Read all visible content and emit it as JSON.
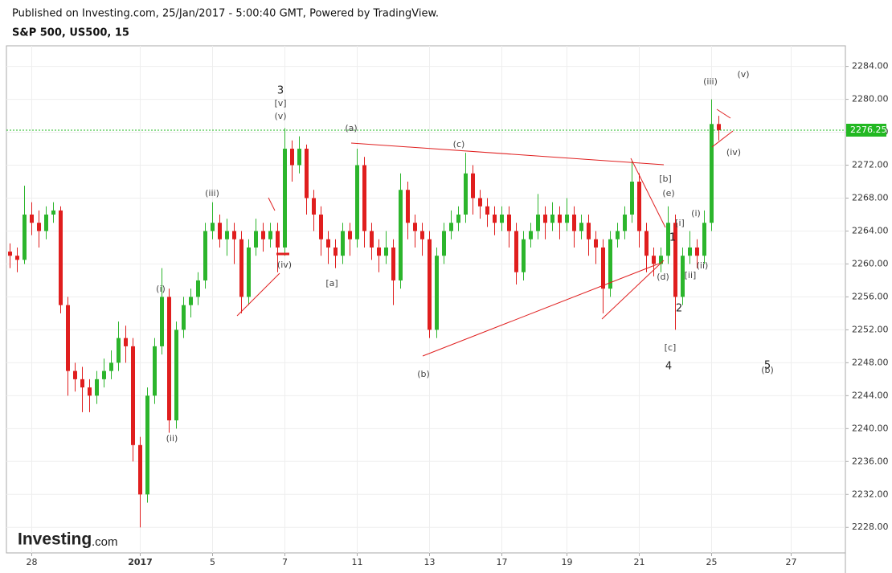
{
  "header": {
    "published": "Published on Investing.com, 25/Jan/2017 - 5:00:40 GMT, Powered by TradingView.",
    "logo": "Investing",
    "logo_suffix": ".com"
  },
  "chart_data": {
    "type": "candlestick",
    "title": "S&P 500, US500, 15",
    "categories": [
      null,
      null,
      null,
      "28",
      null,
      null,
      null,
      null,
      null,
      null,
      null,
      null,
      null,
      null,
      null,
      null,
      null,
      null,
      "2017",
      null,
      null,
      null,
      null,
      null,
      null,
      null,
      null,
      null,
      "5",
      null,
      null,
      null,
      null,
      null,
      null,
      null,
      null,
      null,
      "7",
      null,
      null,
      null,
      null,
      null,
      null,
      null,
      null,
      null,
      "11",
      null,
      null,
      null,
      null,
      null,
      null,
      null,
      null,
      null,
      "13",
      null,
      null,
      null,
      null,
      null,
      null,
      null,
      null,
      null,
      "17",
      null,
      null,
      null,
      null,
      null,
      null,
      null,
      null,
      "19",
      null,
      null,
      null,
      null,
      null,
      null,
      null,
      null,
      null,
      "21",
      null,
      null,
      null,
      null,
      null,
      null,
      null,
      null,
      null,
      "25",
      null,
      null,
      null,
      null,
      null,
      null,
      null,
      null,
      null,
      null,
      "27",
      null,
      null,
      null,
      null,
      null,
      null,
      null
    ],
    "open": [
      2261.5,
      2261,
      2260.5,
      2266,
      2265,
      2264,
      2266,
      2266.5,
      2255,
      2247,
      2246,
      2245,
      2244,
      2246,
      2247,
      2248,
      2251,
      2250,
      2238,
      2232,
      2244,
      2250,
      2256,
      2241,
      2252,
      2255,
      2256,
      2258,
      2264,
      2265,
      2263,
      2264,
      2263,
      2256,
      2262,
      2264,
      2263,
      2264,
      2262,
      2274,
      2272,
      2274,
      2268,
      2266,
      2263,
      2262,
      2261,
      2264,
      2263,
      2272,
      2264,
      2262,
      2261,
      2262,
      2258,
      2269,
      2265,
      2264,
      2263,
      2252,
      2261,
      2264,
      2265,
      2266,
      2271,
      2268,
      2267,
      2266,
      2265,
      2266,
      2264,
      2259,
      2263,
      2264,
      2266,
      2265,
      2266,
      2265,
      2266,
      2264,
      2265,
      2263,
      2262,
      2257,
      2263,
      2264,
      2266,
      2270,
      2264,
      2261,
      2260,
      2261,
      2265,
      2256,
      2261,
      2262,
      2261,
      2265,
      2277,
      null,
      null,
      null,
      null,
      null,
      null,
      null,
      null,
      null,
      null,
      null,
      null,
      null,
      null,
      null,
      null,
      null
    ],
    "high": [
      2262.5,
      2262,
      2269.5,
      2267.5,
      2266.5,
      2267,
      2267.5,
      2267,
      2256,
      2248,
      2247.5,
      2246,
      2247,
      2248.5,
      2249.5,
      2253,
      2252.5,
      2251,
      2239,
      2245,
      2251,
      2259.5,
      2257,
      2253,
      2256,
      2257,
      2259,
      2265,
      2267.5,
      2266,
      2265.5,
      2265,
      2264,
      2263,
      2265.5,
      2265,
      2265,
      2265,
      2276.5,
      2275,
      2275.5,
      2274.5,
      2269,
      2267,
      2264,
      2263,
      2265,
      2265,
      2274,
      2273,
      2265,
      2263,
      2264,
      2263,
      2271,
      2270,
      2266,
      2265,
      2264,
      2262,
      2265,
      2266.5,
      2267,
      2273.5,
      2272,
      2269,
      2268,
      2267,
      2267,
      2267,
      2265,
      2264,
      2265,
      2268.5,
      2267,
      2267.5,
      2267,
      2268,
      2267,
      2266,
      2266,
      2264,
      2263,
      2264,
      2265,
      2267,
      2272.5,
      2271,
      2265,
      2262,
      2262,
      2267,
      2266,
      2262,
      2264,
      2263,
      2266.5,
      2280,
      2278,
      null,
      null,
      null,
      null,
      null,
      null,
      null,
      null,
      null,
      null,
      null,
      null,
      null,
      null,
      null,
      null,
      null
    ],
    "low": [
      2259.5,
      2259,
      2260,
      2263.5,
      2262,
      2263,
      2265,
      2254,
      2244,
      2244.5,
      2242,
      2242,
      2243,
      2245,
      2246,
      2247,
      2248,
      2236,
      2228,
      2231,
      2243,
      2249,
      2239.5,
      2240,
      2251,
      2253.5,
      2255,
      2257,
      2263,
      2262,
      2261,
      2260,
      2254,
      2255,
      2261,
      2261.5,
      2262,
      2259,
      2261,
      2270,
      2271,
      2266,
      2264,
      2261,
      2260,
      2259.5,
      2260,
      2261,
      2262,
      2262,
      2260.5,
      2259,
      2260,
      2255,
      2257,
      2263,
      2262,
      2261,
      2251,
      2251,
      2260,
      2263,
      2264,
      2265,
      2266,
      2265.5,
      2264.5,
      2263.5,
      2264,
      2262,
      2257.5,
      2258,
      2262,
      2263,
      2263,
      2264,
      2263,
      2264,
      2262,
      2263,
      2261,
      2260,
      2254,
      2256,
      2262,
      2263,
      2265,
      2262,
      2259,
      2258.5,
      2259,
      2260,
      2252,
      2255,
      2260,
      2259.5,
      2260,
      2264,
      2275,
      null,
      null,
      null,
      null,
      null,
      null,
      null,
      null,
      null,
      null,
      null,
      null,
      null,
      null,
      null,
      null,
      null
    ],
    "close": [
      2261,
      2260.5,
      2266,
      2265,
      2264,
      2266,
      2266.5,
      2255,
      2247,
      2246,
      2245,
      2244,
      2246,
      2247,
      2248,
      2251,
      2250,
      2238,
      2232,
      2244,
      2250,
      2256,
      2241,
      2252,
      2255,
      2256,
      2258,
      2264,
      2265,
      2263,
      2264,
      2263,
      2256,
      2262,
      2264,
      2263,
      2264,
      2262,
      2274,
      2272,
      2274,
      2268,
      2266,
      2263,
      2262,
      2261,
      2264,
      2263,
      2272,
      2264,
      2262,
      2261,
      2262,
      2258,
      2269,
      2265,
      2264,
      2263,
      2252,
      2261,
      2264,
      2265,
      2266,
      2271,
      2268,
      2267,
      2266,
      2265,
      2266,
      2264,
      2259,
      2263,
      2264,
      2266,
      2265,
      2266,
      2265,
      2266,
      2264,
      2265,
      2263,
      2262,
      2257,
      2263,
      2264,
      2266,
      2270,
      2264,
      2261,
      2260,
      2261,
      2265,
      2256,
      2261,
      2262,
      2261,
      2265,
      2277,
      2276.25,
      null,
      null,
      null,
      null,
      null,
      null,
      null,
      null,
      null,
      null,
      null,
      null,
      null,
      null,
      null,
      null,
      null
    ],
    "up_color": "#2cb52c",
    "down_color": "#e01e1e",
    "last_price": 2276.25,
    "last_price_color": "#22b822",
    "ylim": [
      2224.9,
      2286.5
    ],
    "yticks": [
      {
        "value": 2228,
        "label": "2228.00"
      },
      {
        "value": 2232,
        "label": "2232.00"
      },
      {
        "value": 2236,
        "label": "2236.00"
      },
      {
        "value": 2240,
        "label": "2240.00"
      },
      {
        "value": 2244,
        "label": "2244.00"
      },
      {
        "value": 2248,
        "label": "2248.00"
      },
      {
        "value": 2252,
        "label": "2252.00"
      },
      {
        "value": 2256,
        "label": "2256.00"
      },
      {
        "value": 2260,
        "label": "2260.00"
      },
      {
        "value": 2264,
        "label": "2264.00"
      },
      {
        "value": 2268,
        "label": "2268.00"
      },
      {
        "value": 2272,
        "label": "2272.00"
      },
      {
        "value": 2276,
        "label": "2276.00"
      },
      {
        "value": 2280,
        "label": "2280.00"
      },
      {
        "value": 2284,
        "label": "2284.00"
      }
    ],
    "grid": true,
    "annotations": [
      "3",
      "[v]",
      "(v)",
      "(iii)",
      "(i)",
      "(ii)",
      "(iv)",
      "[a]",
      "(a)",
      "(b)",
      "(c)",
      "[b]",
      "(e)",
      "[i]",
      "1",
      "(d)",
      "[ii]",
      "(ii)",
      "(i)",
      "2",
      "[c]",
      "4",
      "(iii)",
      "(v)",
      "(iv)",
      "5",
      "(b)"
    ]
  }
}
